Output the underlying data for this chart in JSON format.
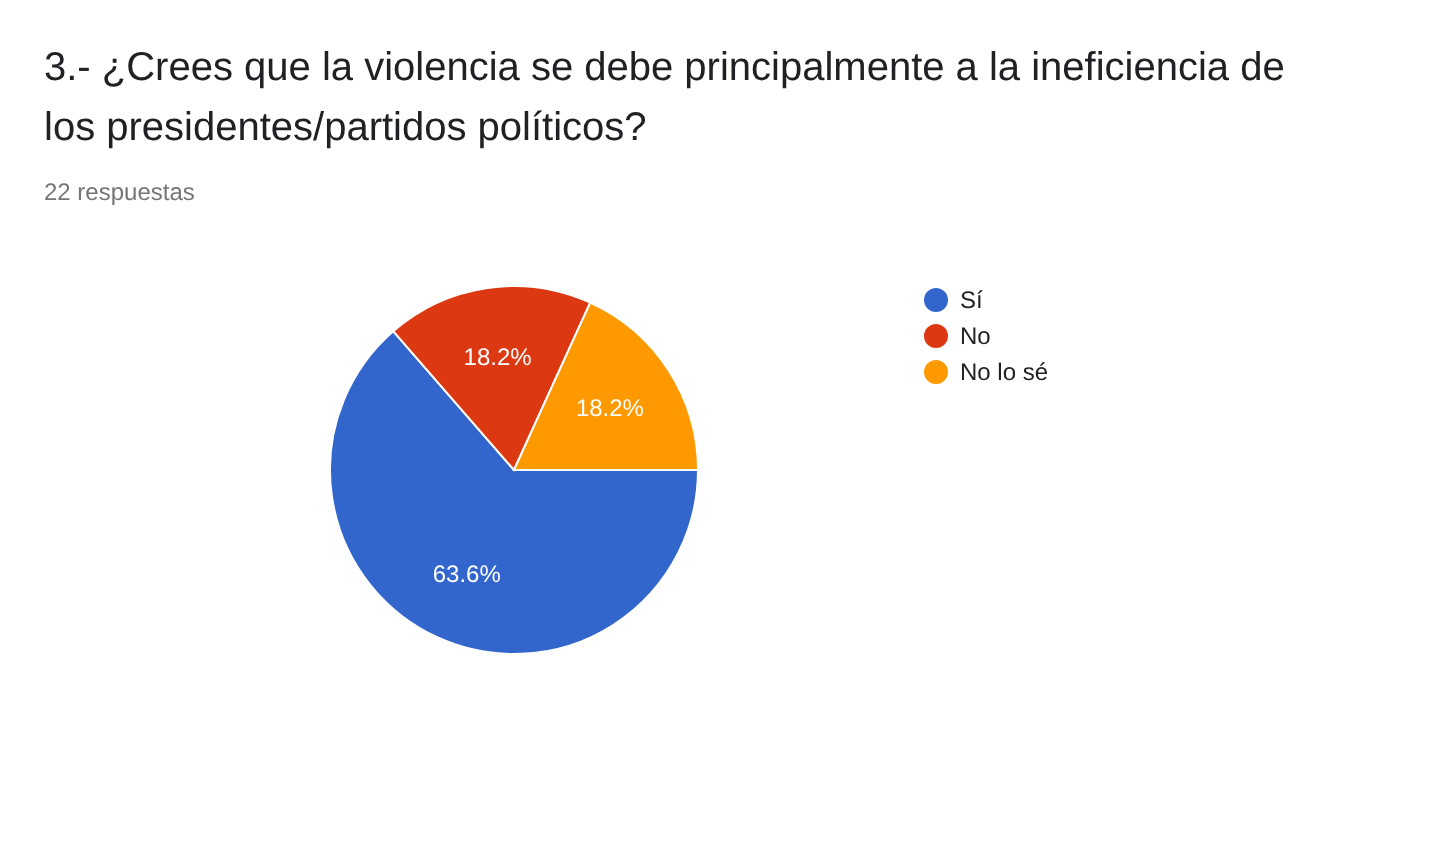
{
  "chart_data": {
    "type": "pie",
    "title": "3.- ¿Crees que la violencia se debe principalmente a la ineficiencia de los presidentes/partidos políticos?",
    "subtitle": "22 respuestas",
    "categories": [
      "Sí",
      "No",
      "No lo sé"
    ],
    "values": [
      63.6,
      18.2,
      18.2
    ],
    "colors": [
      "#3366cc",
      "#dc3912",
      "#ff9900"
    ],
    "value_labels": [
      "63.6%",
      "18.2%",
      "18.2%"
    ],
    "legend": "right"
  }
}
